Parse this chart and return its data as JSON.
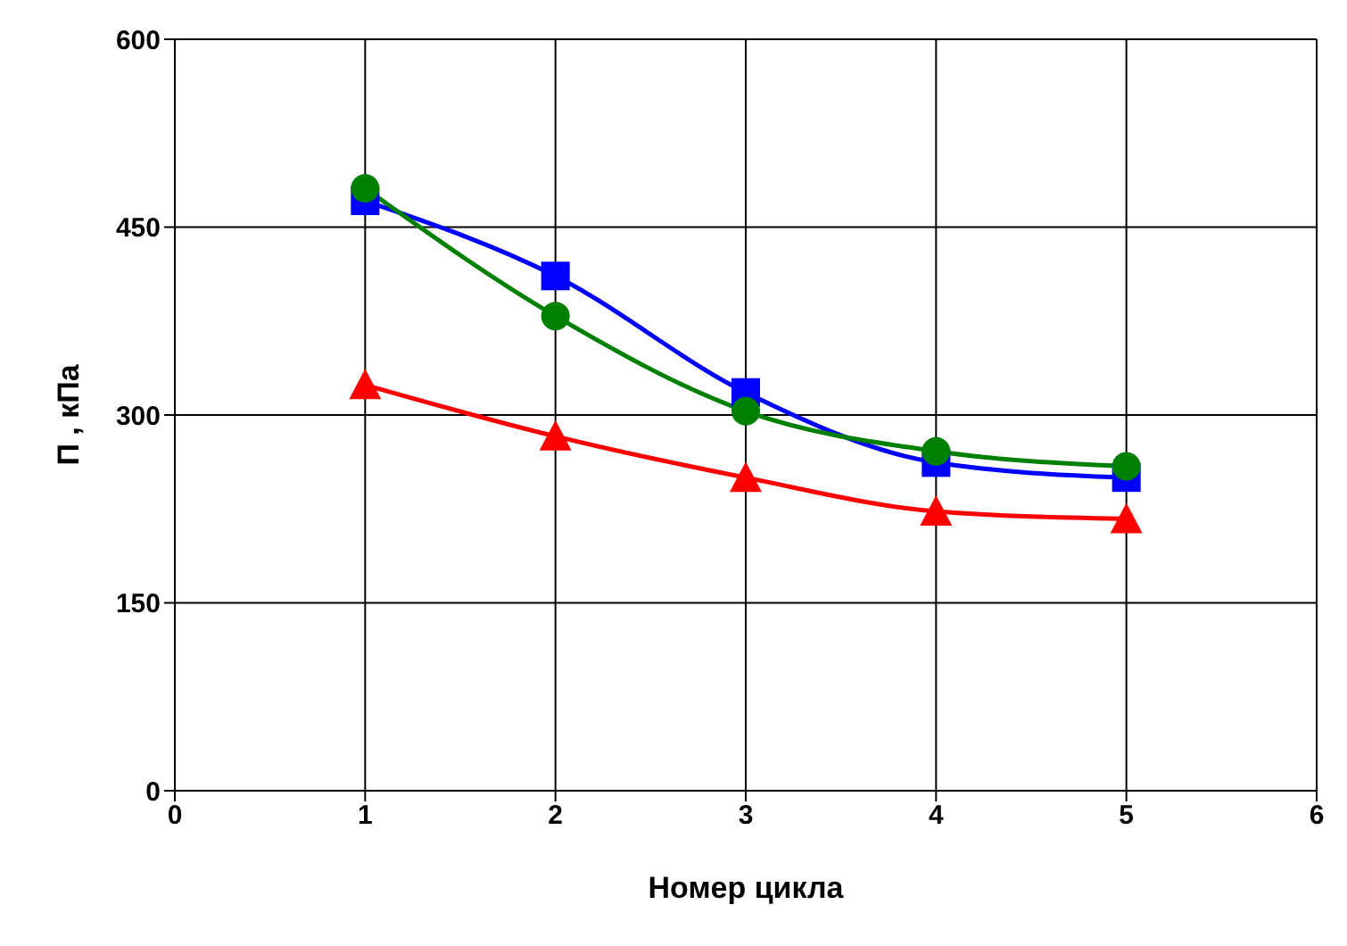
{
  "chart_data": {
    "type": "line",
    "xlabel": "Номер цикла",
    "ylabel": "П , кПа",
    "x": [
      1,
      2,
      3,
      4,
      5
    ],
    "series": [
      {
        "color": "#008000",
        "marker": "circle",
        "values": [
          481,
          379,
          303,
          271,
          259
        ]
      },
      {
        "color": "#0000ff",
        "marker": "square",
        "values": [
          471,
          411,
          318,
          262,
          250
        ]
      },
      {
        "color": "#ff0000",
        "marker": "triangle",
        "values": [
          324,
          283,
          250,
          223,
          217
        ]
      }
    ],
    "xlim": [
      0,
      6
    ],
    "xticks": [
      0,
      1,
      2,
      3,
      4,
      5,
      6
    ],
    "ylim": [
      0,
      600
    ],
    "yticks": [
      0,
      150,
      300,
      450,
      600
    ],
    "grid": true,
    "legend": false
  }
}
